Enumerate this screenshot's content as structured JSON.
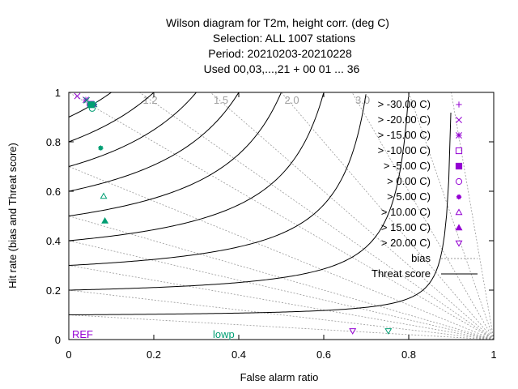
{
  "chart_data": {
    "type": "scatter",
    "title_lines": [
      "Wilson diagram  for T2m, height corr. (deg C)",
      "Selection: ALL   1007 stations",
      "Period: 20210203-20210228",
      "Used  00,03,...,21  + 00 01 ... 36"
    ],
    "xlabel": "False alarm ratio",
    "ylabel": "Hit rate (bias and Threat score)",
    "xlim": [
      0,
      1
    ],
    "ylim": [
      0,
      1
    ],
    "x_ticks": [
      "0",
      "0.2",
      "0.4",
      "0.6",
      "0.8",
      "1"
    ],
    "y_ticks": [
      "0",
      "0.2",
      "0.4",
      "0.6",
      "0.8",
      "1"
    ],
    "bias_lines": [
      0.1,
      0.2,
      0.3,
      0.4,
      0.5,
      0.7,
      1.0,
      1.2,
      1.5,
      2.0,
      3.0,
      5.0,
      10.0
    ],
    "bias_labels": [
      {
        "value": 1.2,
        "text": "1.2"
      },
      {
        "value": 1.5,
        "text": "1.5"
      },
      {
        "value": 2.0,
        "text": "2.0"
      },
      {
        "value": 3.0,
        "text": "3.0"
      }
    ],
    "threat_scores": [
      0.1,
      0.2,
      0.3,
      0.4,
      0.5,
      0.6,
      0.7,
      0.8,
      0.9
    ],
    "legend": {
      "placement": "right",
      "entries": [
        {
          "label": "> -30.00 C)",
          "marker": "plus",
          "color": "#9400d3"
        },
        {
          "label": "> -20.00 C)",
          "marker": "cross",
          "color": "#9400d3"
        },
        {
          "label": "> -15.00 C)",
          "marker": "star",
          "color": "#9400d3"
        },
        {
          "label": "> -10.00 C)",
          "marker": "square-open",
          "color": "#9400d3"
        },
        {
          "label": "> -5.00 C)",
          "marker": "square-filled",
          "color": "#9400d3"
        },
        {
          "label": "> 0.00 C)",
          "marker": "circle-open",
          "color": "#9400d3"
        },
        {
          "label": "> 5.00 C)",
          "marker": "circle-filled",
          "color": "#9400d3"
        },
        {
          "label": "> 10.00 C)",
          "marker": "triangle-open",
          "color": "#9400d3"
        },
        {
          "label": "> 15.00 C)",
          "marker": "triangle-filled",
          "color": "#9400d3"
        },
        {
          "label": "> 20.00 C)",
          "marker": "tri-down-open",
          "color": "#9400d3"
        }
      ],
      "bias_label": "bias",
      "threat_label": "Threat score"
    },
    "series": [
      {
        "name": "REF",
        "color": "#9400d3",
        "points": [
          {
            "x": 0.02,
            "y": 0.985,
            "marker": "cross"
          },
          {
            "x": 0.04,
            "y": 0.97,
            "marker": "star"
          },
          {
            "x": 0.052,
            "y": 0.952,
            "marker": "square-filled"
          },
          {
            "x": 0.05,
            "y": 0.95,
            "marker": "circle-open"
          },
          {
            "x": 0.06,
            "y": 0.95,
            "marker": "circle-filled"
          },
          {
            "x": 0.668,
            "y": 0.035,
            "marker": "tri-down-open"
          }
        ]
      },
      {
        "name": "lowp",
        "color": "#009e73",
        "points": [
          {
            "x": 0.042,
            "y": 0.968,
            "marker": "cross"
          },
          {
            "x": 0.052,
            "y": 0.95,
            "marker": "square-filled"
          },
          {
            "x": 0.06,
            "y": 0.952,
            "marker": "star"
          },
          {
            "x": 0.055,
            "y": 0.935,
            "marker": "circle-open"
          },
          {
            "x": 0.075,
            "y": 0.775,
            "marker": "circle-filled"
          },
          {
            "x": 0.082,
            "y": 0.58,
            "marker": "triangle-open"
          },
          {
            "x": 0.085,
            "y": 0.48,
            "marker": "triangle-filled"
          },
          {
            "x": 0.752,
            "y": 0.035,
            "marker": "tri-down-open"
          }
        ]
      }
    ]
  }
}
